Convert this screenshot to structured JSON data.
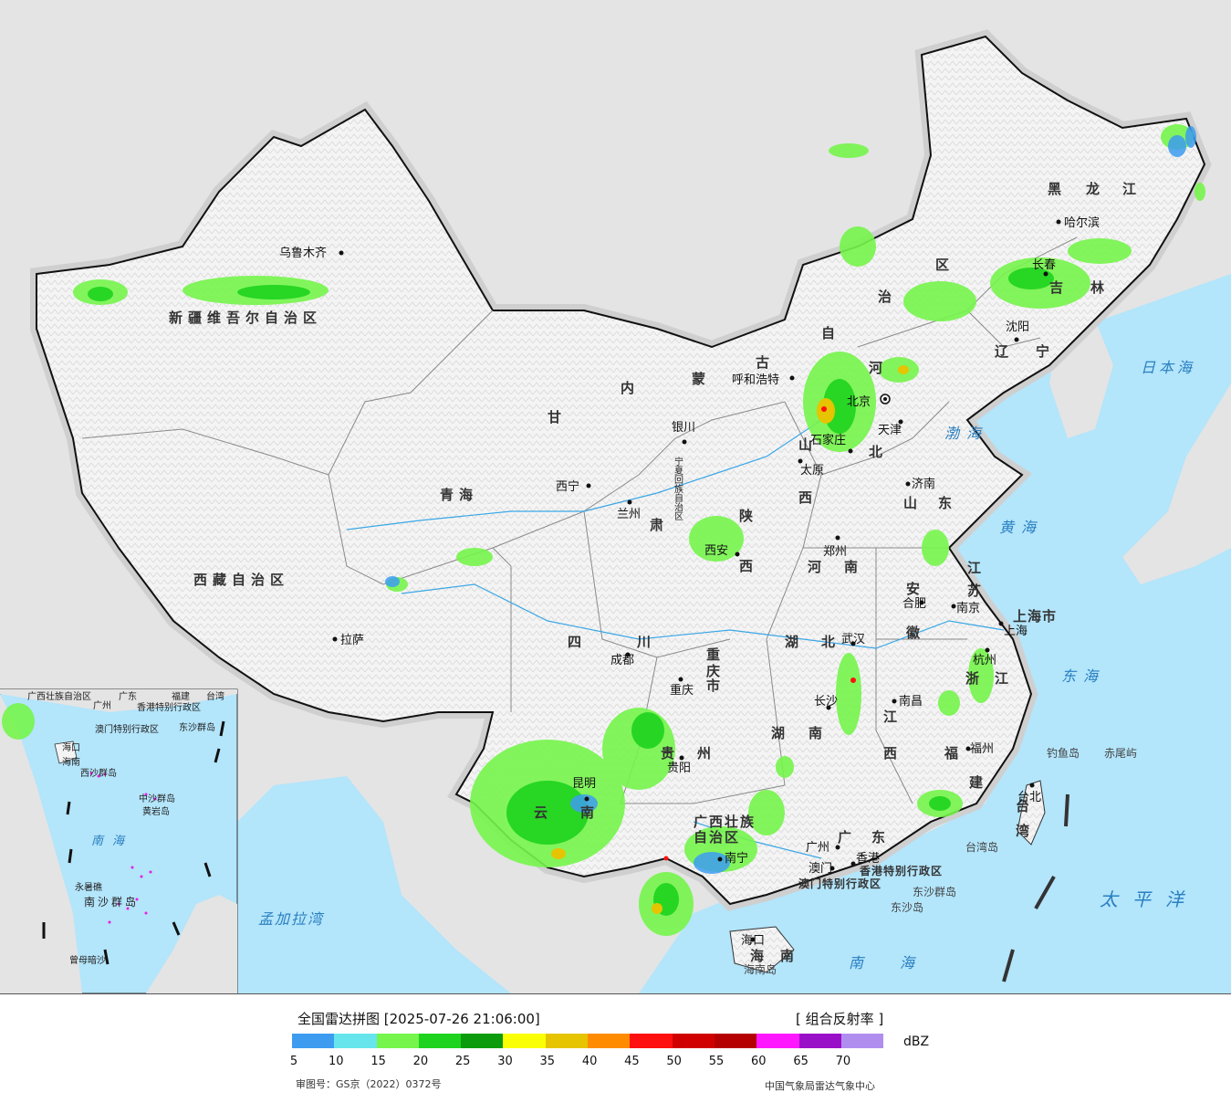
{
  "title": "全国雷达拼图 [2025-07-26 21:06:00]",
  "product": "[ 组合反射率 ]",
  "unit": "dBZ",
  "review_number": "审图号：GS京（2022）0372号",
  "organization": "中国气象局雷达气象中心",
  "legend": {
    "colors": [
      "#3d9cf0",
      "#66e6ec",
      "#76f54c",
      "#1ed31e",
      "#0b9b0b",
      "#fbff05",
      "#e6c400",
      "#ff8c00",
      "#ff1010",
      "#d00000",
      "#b40000",
      "#ff18ff",
      "#9a10c8",
      "#b08ef0"
    ],
    "ticks": [
      "5",
      "10",
      "15",
      "20",
      "25",
      "30",
      "35",
      "40",
      "45",
      "50",
      "55",
      "60",
      "65",
      "70"
    ]
  },
  "provinces": [
    "新疆维吾尔自治区",
    "西藏自治区",
    "青海",
    "甘",
    "肃",
    "四",
    "川",
    "内",
    "蒙",
    "古",
    "自",
    "治",
    "区",
    "黑",
    "龙",
    "江",
    "吉",
    "林",
    "辽",
    "宁",
    "河",
    "北",
    "山",
    "西",
    "陕",
    "西",
    "河",
    "南",
    "山",
    "东",
    "江",
    "苏",
    "安",
    "徽",
    "湖",
    "北",
    "湖",
    "南",
    "江",
    "西",
    "浙",
    "江",
    "福",
    "建",
    "广",
    "东",
    "广西壮族",
    "自治区",
    "云",
    "南",
    "贵",
    "州",
    "重",
    "庆",
    "市",
    "海",
    "南",
    "上海市",
    "宁夏回族自治区",
    "香港特别行政区",
    "澳门特别行政区",
    "台",
    "湾"
  ],
  "cities": [
    "乌鲁木齐",
    "拉萨",
    "西宁",
    "兰州",
    "银川",
    "呼和浩特",
    "北京",
    "天津",
    "石家庄",
    "太原",
    "济南",
    "郑州",
    "西安",
    "成都",
    "重庆",
    "贵阳",
    "昆明",
    "南宁",
    "广州",
    "香港",
    "澳门",
    "海口",
    "长沙",
    "武汉",
    "南昌",
    "合肥",
    "南京",
    "上海",
    "杭州",
    "福州",
    "台北",
    "沈阳",
    "长春",
    "哈尔滨"
  ],
  "seas": [
    "渤海",
    "黄海",
    "东海",
    "南海",
    "日本海",
    "太平洋",
    "孟加拉湾"
  ],
  "islands": [
    "钓鱼岛",
    "赤尾屿",
    "台湾岛",
    "东沙群岛",
    "东沙岛",
    "海南岛"
  ],
  "inset": {
    "labels": [
      "广西壮族自治区",
      "广东",
      "福建",
      "台湾",
      "广州",
      "香港特别行政区",
      "澳门特别行政区",
      "东沙群岛",
      "海口",
      "海南",
      "西沙群岛",
      "中沙群岛",
      "黄岩岛",
      "南海",
      "永暑礁",
      "南沙群岛",
      "曾母暗沙"
    ]
  }
}
